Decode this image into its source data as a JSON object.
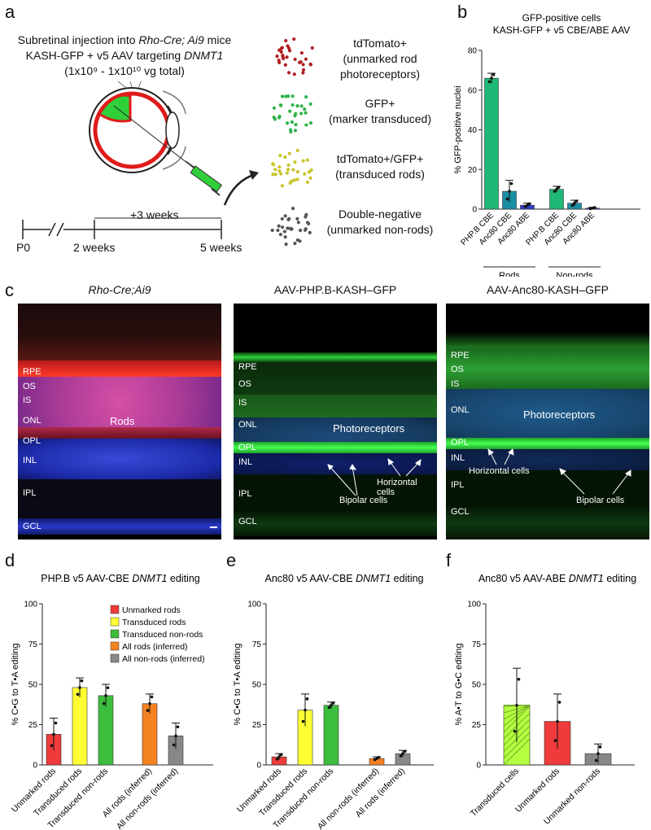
{
  "panels": {
    "a": "a",
    "b": "b",
    "c": "c",
    "d": "d",
    "e": "e",
    "f": "f"
  },
  "panel_a": {
    "line1_pre": "Subretinal injection into ",
    "line1_em": "Rho-Cre; Ai9",
    "line1_post": " mice",
    "line2_pre": "KASH-GFP + v5 AAV targeting ",
    "line2_em": "DNMT1",
    "line3": "(1x10⁹ - 1x10¹⁰ vg total)",
    "timeline": {
      "p0": "P0",
      "w2": "2 weeks",
      "w5": "5 weeks",
      "plus3": "+3 weeks"
    },
    "legend": [
      {
        "line1": "tdTomato+",
        "line2": "(unmarked rod",
        "line3": "photoreceptors)",
        "color": "#b01e23"
      },
      {
        "line1": "GFP+",
        "line2": "(marker transduced)",
        "line3": "",
        "color": "#2fb34a"
      },
      {
        "line1": "tdTomato+/GFP+",
        "line2": "(transduced rods)",
        "line3": "",
        "color": "#c9c52b"
      },
      {
        "line1": "Double-negative",
        "line2": "(unmarked non-rods)",
        "line3": "",
        "color": "#555555"
      }
    ]
  },
  "panel_c": {
    "titles": [
      "Rho-Cre;Ai9",
      "AAV-PHP.B-KASH–GFP",
      "AAV-Anc80-KASH–GFP"
    ],
    "layers1": [
      "RPE",
      "OS",
      "IS",
      "ONL",
      "OPL",
      "INL",
      "IPL",
      "GCL"
    ],
    "layers2": [
      "RPE",
      "OS",
      "IS",
      "ONL",
      "OPL",
      "INL",
      "IPL",
      "GCL"
    ],
    "layers3": [
      "RPE",
      "OS",
      "IS",
      "ONL",
      "OPL",
      "INL",
      "IPL",
      "GCL"
    ],
    "rods": "Rods",
    "photoreceptors": "Photoreceptors",
    "horizontal": "Horizontal cells",
    "bipolar": "Bipolar cells"
  },
  "colors": {
    "green": "#1fb874",
    "teal": "#1b8ea3",
    "blue": "#2f3bcc",
    "red": "#ef3b3b",
    "yellow": "#ffff33",
    "lime": "#3dbd3d",
    "orange": "#f58220",
    "gray": "#888888",
    "hatch": "#b3ff3f"
  },
  "chart_data": [
    {
      "id": "b",
      "type": "bar",
      "title": "GFP-positive cells",
      "subtitle": "KASH-GFP + v5 CBE/ABE AAV",
      "ylabel": "% GFP-positive nuclei",
      "ylim": [
        0,
        80
      ],
      "yticks": [
        0,
        20,
        40,
        60,
        80
      ],
      "categories": [
        "PHP.B CBE",
        "Anc80 CBE",
        "Anc80 ABE",
        "PHP.B CBE",
        "Anc80 CBE",
        "Anc80 ABE"
      ],
      "values": [
        66,
        9,
        2,
        10,
        3,
        0.5
      ],
      "errors": [
        2.5,
        5.5,
        1,
        1.5,
        1.5,
        0.4
      ],
      "groups": [
        {
          "label": "Rods",
          "members": [
            0,
            1,
            2
          ]
        },
        {
          "label": "Non-rods",
          "members": [
            3,
            4,
            5
          ]
        }
      ]
    },
    {
      "id": "d",
      "type": "bar",
      "title_pre": "PHP.B v5 AAV-CBE ",
      "title_em": "DNMT1",
      "title_post": " editing",
      "ylabel": "% C•G to T•A editing",
      "ylim": [
        0,
        100
      ],
      "yticks": [
        0,
        25,
        50,
        75,
        100
      ],
      "categories": [
        "Unmarked rods",
        "Transduced rods",
        "Transduced non-rods",
        "All rods (inferred)",
        "All non-rods (inferred)"
      ],
      "values": [
        19,
        48,
        43,
        38,
        18
      ],
      "errors": [
        10,
        6,
        7,
        6,
        8
      ],
      "legend": [
        "Unmarked rods",
        "Transduced rods",
        "Transduced non-rods",
        "All rods (inferred)",
        "All non-rods (inferred)"
      ]
    },
    {
      "id": "e",
      "type": "bar",
      "title_pre": "Anc80 v5 AAV-CBE ",
      "title_em": "DNMT1",
      "title_post": " editing",
      "ylabel": "% C•G to T•A editing",
      "ylim": [
        0,
        100
      ],
      "yticks": [
        0,
        25,
        50,
        75,
        100
      ],
      "categories": [
        "Unmarked rods",
        "Transduced rods",
        "Transduced non-rods",
        "All non-rods (inferred)",
        "All rods (inferred)"
      ],
      "values": [
        5,
        34,
        37,
        4,
        7
      ],
      "errors": [
        2,
        10,
        2,
        1,
        2
      ]
    },
    {
      "id": "f",
      "type": "bar",
      "title_pre": "Anc80 v5 AAV-ABE ",
      "title_em": "DNMT1",
      "title_post": " editing",
      "ylabel": "% A•T to G•C editing",
      "ylim": [
        0,
        100
      ],
      "yticks": [
        0,
        25,
        50,
        75,
        100
      ],
      "categories": [
        "Transduced cells",
        "Unmarked rods",
        "Unmarked non-rods"
      ],
      "values": [
        37,
        27,
        7
      ],
      "errors": [
        23,
        17,
        6
      ]
    }
  ]
}
